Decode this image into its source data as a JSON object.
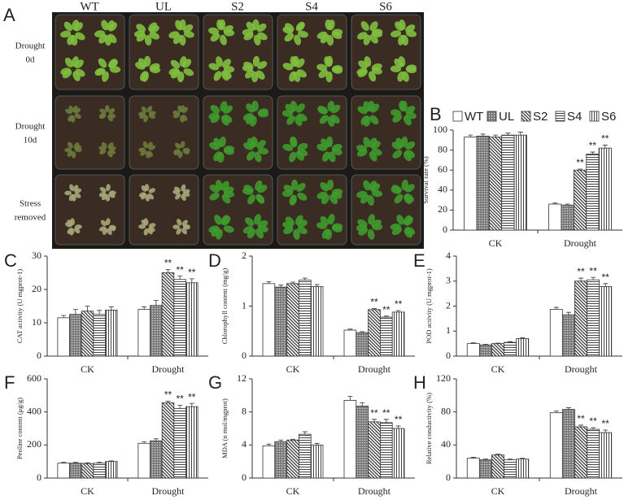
{
  "panel_a": {
    "label": "A",
    "columns": [
      "WT",
      "UL",
      "S2",
      "S4",
      "S6"
    ],
    "rows": [
      [
        "Drought",
        "0d"
      ],
      [
        "Drought",
        "10d"
      ],
      [
        "Stress",
        "removed"
      ]
    ]
  },
  "chart_data": [
    {
      "type": "bar",
      "label": "B",
      "ylabel": "Survival rate (%)",
      "categories": [
        "CK",
        "Drought"
      ],
      "ylim": [
        0,
        100
      ],
      "yticks": [
        0,
        20,
        40,
        60,
        80,
        100
      ],
      "legend": true,
      "series": [
        {
          "name": "WT",
          "pattern": "white",
          "values": [
            93,
            26
          ],
          "errors": [
            2,
            1
          ],
          "stars": [
            null,
            null
          ]
        },
        {
          "name": "UL",
          "pattern": "dots",
          "values": [
            94,
            25
          ],
          "errors": [
            2,
            1
          ],
          "stars": [
            null,
            null
          ]
        },
        {
          "name": "S2",
          "pattern": "diagonal",
          "values": [
            93,
            60
          ],
          "errors": [
            2,
            1
          ],
          "stars": [
            null,
            "**"
          ]
        },
        {
          "name": "S4",
          "pattern": "horizontal",
          "values": [
            95,
            76
          ],
          "errors": [
            2,
            2
          ],
          "stars": [
            null,
            "**"
          ]
        },
        {
          "name": "S6",
          "pattern": "vertical",
          "values": [
            95,
            82
          ],
          "errors": [
            3,
            3
          ],
          "stars": [
            null,
            "**"
          ]
        }
      ]
    },
    {
      "type": "bar",
      "label": "C",
      "ylabel": "CAT activity (U mgprot-1)",
      "categories": [
        "CK",
        "Drought"
      ],
      "ylim": [
        0,
        30
      ],
      "yticks": [
        0,
        10,
        20,
        30
      ],
      "series": [
        {
          "values": [
            11.5,
            14
          ],
          "errors": [
            0.7,
            0.8
          ],
          "stars": [
            null,
            null
          ]
        },
        {
          "values": [
            12.5,
            15.2
          ],
          "errors": [
            1.5,
            1.5
          ],
          "stars": [
            null,
            null
          ]
        },
        {
          "values": [
            13.5,
            25
          ],
          "errors": [
            1.5,
            1
          ],
          "stars": [
            null,
            "**"
          ]
        },
        {
          "values": [
            12.5,
            23
          ],
          "errors": [
            1.2,
            1
          ],
          "stars": [
            null,
            "**"
          ]
        },
        {
          "values": [
            13.8,
            22
          ],
          "errors": [
            1,
            1.2
          ],
          "stars": [
            null,
            "**"
          ]
        }
      ]
    },
    {
      "type": "bar",
      "label": "D",
      "ylabel": "Chlorophyll content (mg/g)",
      "categories": [
        "CK",
        "Drought"
      ],
      "ylim": [
        0,
        2
      ],
      "yticks": [
        0,
        1,
        2
      ],
      "series": [
        {
          "values": [
            1.45,
            0.52
          ],
          "errors": [
            0.04,
            0.02
          ],
          "stars": [
            null,
            null
          ]
        },
        {
          "values": [
            1.38,
            0.47
          ],
          "errors": [
            0.04,
            0.02
          ],
          "stars": [
            null,
            null
          ]
        },
        {
          "values": [
            1.45,
            0.93
          ],
          "errors": [
            0.03,
            0.02
          ],
          "stars": [
            null,
            "**"
          ]
        },
        {
          "values": [
            1.52,
            0.78
          ],
          "errors": [
            0.04,
            0.02
          ],
          "stars": [
            null,
            "**"
          ]
        },
        {
          "values": [
            1.39,
            0.88
          ],
          "errors": [
            0.04,
            0.03
          ],
          "stars": [
            null,
            "**"
          ]
        }
      ]
    },
    {
      "type": "bar",
      "label": "E",
      "ylabel": "POD activity (U mgprot-1)",
      "categories": [
        "CK",
        "Drought"
      ],
      "ylim": [
        0,
        4
      ],
      "yticks": [
        0,
        1,
        2,
        3,
        4
      ],
      "series": [
        {
          "values": [
            0.5,
            1.87
          ],
          "errors": [
            0.03,
            0.08
          ],
          "stars": [
            null,
            null
          ]
        },
        {
          "values": [
            0.45,
            1.65
          ],
          "errors": [
            0.02,
            0.1
          ],
          "stars": [
            null,
            null
          ]
        },
        {
          "values": [
            0.5,
            3.0
          ],
          "errors": [
            0.02,
            0.12
          ],
          "stars": [
            null,
            "**"
          ]
        },
        {
          "values": [
            0.55,
            3.05
          ],
          "errors": [
            0.03,
            0.1
          ],
          "stars": [
            null,
            "**"
          ]
        },
        {
          "values": [
            0.7,
            2.78
          ],
          "errors": [
            0.03,
            0.12
          ],
          "stars": [
            null,
            "**"
          ]
        }
      ]
    },
    {
      "type": "bar",
      "label": "F",
      "ylabel": "Peoline content (μg/g)",
      "categories": [
        "CK",
        "Drought"
      ],
      "ylim": [
        0,
        600
      ],
      "yticks": [
        0,
        200,
        400,
        600
      ],
      "series": [
        {
          "values": [
            90,
            210
          ],
          "errors": [
            5,
            10
          ],
          "stars": [
            null,
            null
          ]
        },
        {
          "values": [
            90,
            225
          ],
          "errors": [
            5,
            12
          ],
          "stars": [
            null,
            null
          ]
        },
        {
          "values": [
            88,
            455
          ],
          "errors": [
            4,
            10
          ],
          "stars": [
            null,
            "**"
          ]
        },
        {
          "values": [
            90,
            420
          ],
          "errors": [
            5,
            20
          ],
          "stars": [
            null,
            "**"
          ]
        },
        {
          "values": [
            100,
            432
          ],
          "errors": [
            4,
            20
          ],
          "stars": [
            null,
            "**"
          ]
        }
      ]
    },
    {
      "type": "bar",
      "label": "G",
      "ylabel": "MDA (n mol/mgprot)",
      "categories": [
        "CK",
        "Drought"
      ],
      "ylim": [
        0,
        12
      ],
      "yticks": [
        0,
        4,
        8,
        12
      ],
      "series": [
        {
          "values": [
            3.9,
            9.4
          ],
          "errors": [
            0.2,
            0.5
          ],
          "stars": [
            null,
            null
          ]
        },
        {
          "values": [
            4.4,
            8.7
          ],
          "errors": [
            0.2,
            0.4
          ],
          "stars": [
            null,
            null
          ]
        },
        {
          "values": [
            4.6,
            6.8
          ],
          "errors": [
            0.1,
            0.3
          ],
          "stars": [
            null,
            "**"
          ]
        },
        {
          "values": [
            5.3,
            6.7
          ],
          "errors": [
            0.3,
            0.4
          ],
          "stars": [
            null,
            "**"
          ]
        },
        {
          "values": [
            4.0,
            6.0
          ],
          "errors": [
            0.2,
            0.3
          ],
          "stars": [
            null,
            "**"
          ]
        }
      ]
    },
    {
      "type": "bar",
      "label": "H",
      "ylabel": "Relative conductivity (%)",
      "categories": [
        "CK",
        "Drought"
      ],
      "ylim": [
        0,
        120
      ],
      "yticks": [
        0,
        40,
        80,
        120
      ],
      "series": [
        {
          "values": [
            24,
            79
          ],
          "errors": [
            1,
            2
          ],
          "stars": [
            null,
            null
          ]
        },
        {
          "values": [
            22,
            83
          ],
          "errors": [
            1,
            2
          ],
          "stars": [
            null,
            null
          ]
        },
        {
          "values": [
            28,
            62
          ],
          "errors": [
            1,
            2
          ],
          "stars": [
            null,
            "**"
          ]
        },
        {
          "values": [
            22,
            59
          ],
          "errors": [
            1,
            2
          ],
          "stars": [
            null,
            "**"
          ]
        },
        {
          "values": [
            23,
            55
          ],
          "errors": [
            1,
            3
          ],
          "stars": [
            null,
            "**"
          ]
        }
      ]
    }
  ]
}
